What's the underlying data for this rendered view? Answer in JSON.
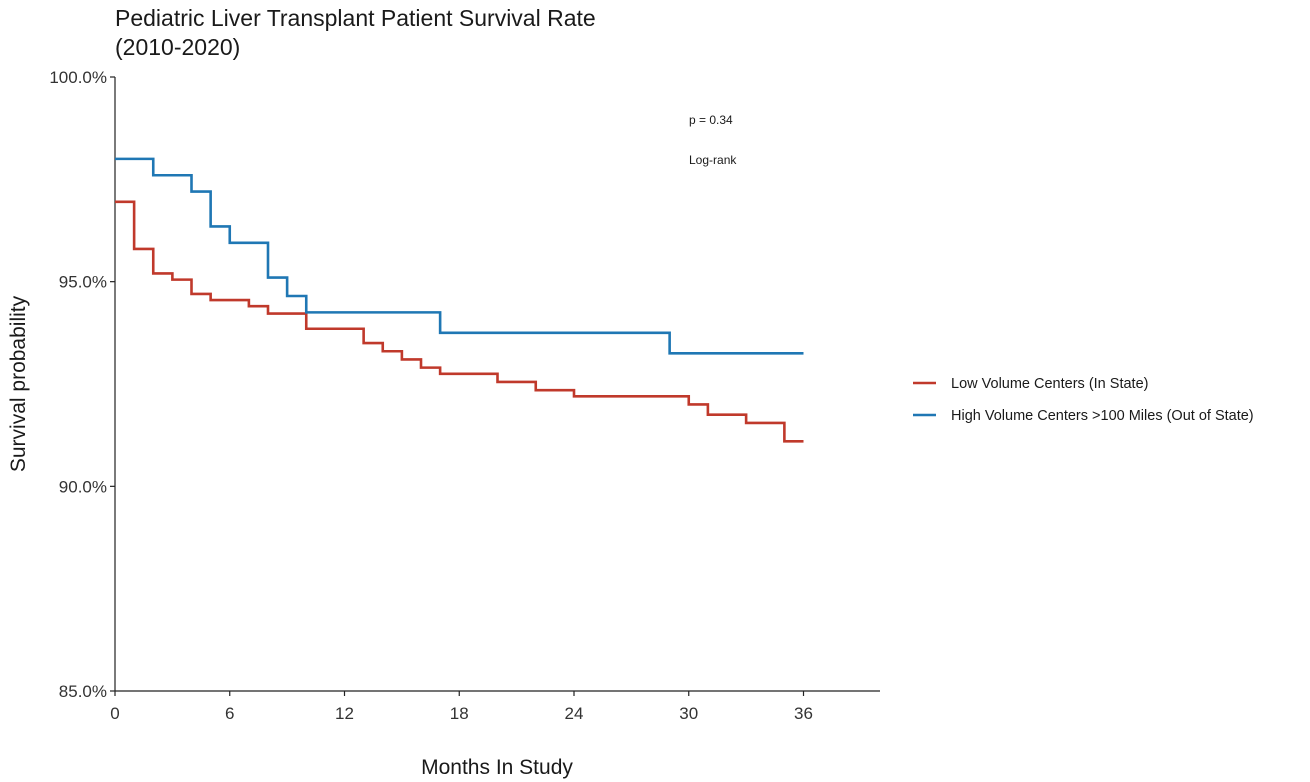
{
  "chart_data": {
    "type": "line",
    "step": true,
    "title_lines": [
      "Pediatric Liver Transplant Patient Survival Rate",
      "(2010-2020)"
    ],
    "xlabel": "Months In Study",
    "ylabel": "Survival probability",
    "xlim": [
      0,
      40
    ],
    "ylim": [
      85,
      100
    ],
    "xticks": [
      0,
      6,
      12,
      18,
      24,
      30,
      36
    ],
    "xtick_labels": [
      "0",
      "6",
      "12",
      "18",
      "24",
      "30",
      "36"
    ],
    "yticks": [
      85,
      90,
      95,
      100
    ],
    "ytick_labels": [
      "85.0%",
      "90.0%",
      "95.0%",
      "100.0%"
    ],
    "grid": false,
    "legend_position": "right",
    "annotations": [
      "p = 0.34",
      "Log-rank"
    ],
    "series": [
      {
        "name": "Low Volume Centers (In State)",
        "color": "#c0392b",
        "x": [
          0,
          1,
          2,
          3,
          4,
          5,
          7,
          8,
          10,
          13,
          14,
          15,
          16,
          17,
          20,
          22,
          24,
          30,
          31,
          33,
          35,
          36
        ],
        "y": [
          96.95,
          95.8,
          95.2,
          95.05,
          94.7,
          94.55,
          94.4,
          94.22,
          93.85,
          93.5,
          93.3,
          93.1,
          92.9,
          92.75,
          92.55,
          92.35,
          92.2,
          92.0,
          91.75,
          91.55,
          91.1,
          91.1
        ]
      },
      {
        "name": "High Volume Centers >100 Miles (Out of State)",
        "color": "#1f77b4",
        "x": [
          0,
          2,
          4,
          5,
          6,
          8,
          9,
          10,
          17,
          29,
          36
        ],
        "y": [
          98.0,
          97.6,
          97.2,
          96.35,
          95.95,
          95.1,
          94.65,
          94.25,
          93.75,
          93.25,
          93.25
        ]
      }
    ]
  }
}
